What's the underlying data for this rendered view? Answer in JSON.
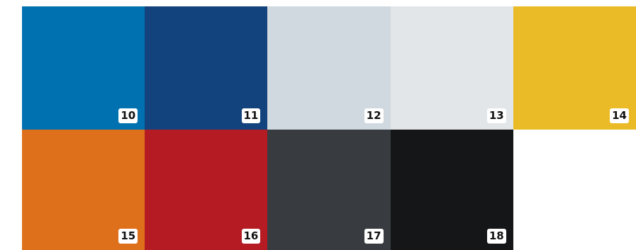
{
  "swatches": [
    {
      "number": "10",
      "color": "#0071b0"
    },
    {
      "number": "11",
      "color": "#13437d"
    },
    {
      "number": "12",
      "color": "#d1d9e0"
    },
    {
      "number": "13",
      "color": "#e2e6e8"
    },
    {
      "number": "14",
      "color": "#ebbb27"
    },
    {
      "number": "15",
      "color": "#de701c"
    },
    {
      "number": "16",
      "color": "#b51b22"
    },
    {
      "number": "17",
      "color": "#383b40"
    },
    {
      "number": "18",
      "color": "#141617"
    }
  ]
}
